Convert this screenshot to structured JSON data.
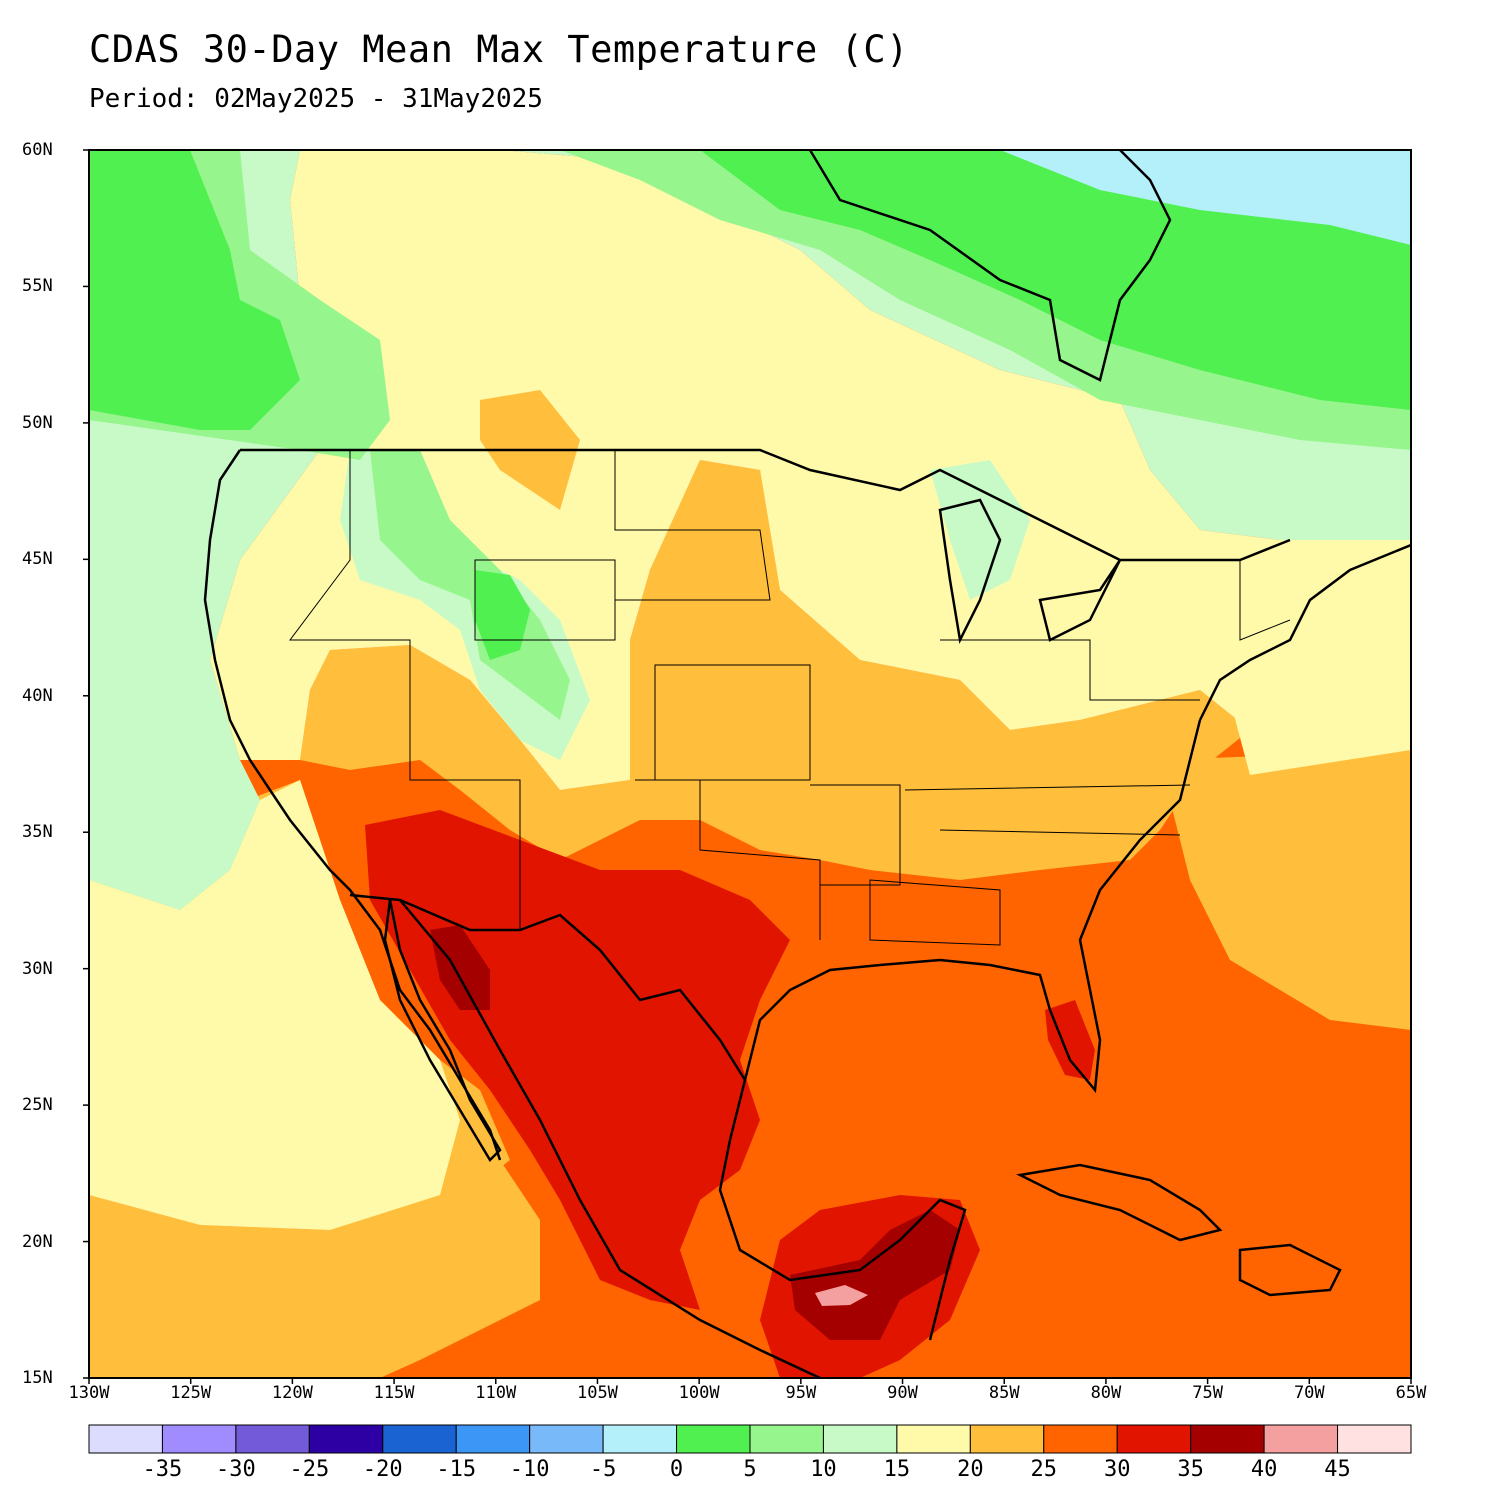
{
  "header": {
    "title": "CDAS 30-Day Mean Max Temperature (C)",
    "period": "Period: 02May2025 - 31May2025"
  },
  "map": {
    "lat_ticks": [
      "60N",
      "55N",
      "50N",
      "45N",
      "40N",
      "35N",
      "30N",
      "25N",
      "20N",
      "15N"
    ],
    "lon_ticks": [
      "130W",
      "125W",
      "120W",
      "115W",
      "110W",
      "105W",
      "100W",
      "95W",
      "90W",
      "85W",
      "80W",
      "75W",
      "70W",
      "65W"
    ],
    "lat_range": [
      15,
      60
    ],
    "lon_range": [
      -130,
      -65
    ]
  },
  "colorbar": {
    "labels": [
      "-35",
      "-30",
      "-25",
      "-20",
      "-15",
      "-10",
      "-5",
      "0",
      "5",
      "10",
      "15",
      "20",
      "25",
      "30",
      "35",
      "40",
      "45"
    ],
    "colors": [
      "#dcdcfe",
      "#a08cfe",
      "#735ad8",
      "#2d00a4",
      "#1964d2",
      "#3c96f5",
      "#78b9fa",
      "#b4f0fa",
      "#50f050",
      "#96f58c",
      "#c8fac8",
      "#fffaaa",
      "#ffbe3c",
      "#ff6400",
      "#e11400",
      "#a50000",
      "#f5a0a0",
      "#ffe1e1"
    ]
  }
}
